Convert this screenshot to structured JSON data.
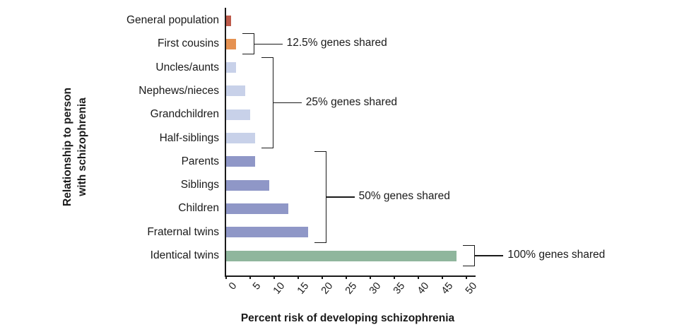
{
  "chart_data": {
    "type": "bar",
    "orientation": "horizontal",
    "title": "",
    "xlabel": "Percent risk of developing schizophrenia",
    "ylabel": "Relationship to person with schizophrenia",
    "ylabel_lines": [
      "Relationship to person",
      "with schizophrenia"
    ],
    "xlim": [
      0,
      50
    ],
    "x_ticks": [
      0,
      5,
      10,
      15,
      20,
      25,
      30,
      35,
      40,
      45,
      50
    ],
    "grid": false,
    "legend": false,
    "categories": [
      "General population",
      "First cousins",
      "Uncles/aunts",
      "Nephews/nieces",
      "Grandchildren",
      "Half-siblings",
      "Parents",
      "Siblings",
      "Children",
      "Fraternal twins",
      "Identical twins"
    ],
    "values": [
      1,
      2,
      2,
      4,
      5,
      6,
      6,
      9,
      13,
      17,
      48
    ],
    "bar_colors": [
      "#bd5a4a",
      "#e59151",
      "#c8d1e9",
      "#c8d1e9",
      "#c8d1e9",
      "#c8d1e9",
      "#8f97c7",
      "#8f97c7",
      "#8f97c7",
      "#8f97c7",
      "#8fb69d"
    ],
    "annotations": [
      {
        "label": "12.5% genes shared",
        "from": "First cousins",
        "to": "First cousins"
      },
      {
        "label": "25% genes shared",
        "from": "Uncles/aunts",
        "to": "Half-siblings"
      },
      {
        "label": "50% genes shared",
        "from": "Parents",
        "to": "Fraternal twins"
      },
      {
        "label": "100% genes shared",
        "from": "Identical twins",
        "to": "Identical twins"
      }
    ]
  },
  "colors": {
    "axis": "#1a1a1a",
    "text": "#1a1a1a",
    "background": "#ffffff"
  }
}
